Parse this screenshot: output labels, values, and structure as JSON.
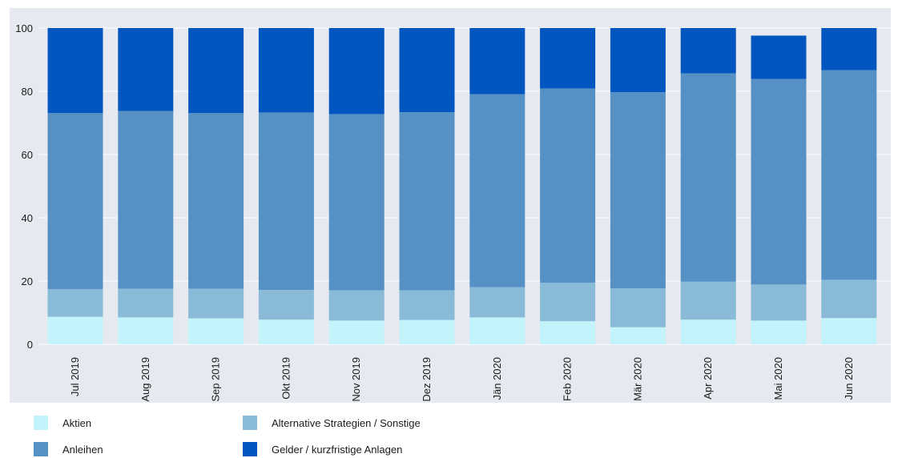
{
  "chart_data": {
    "type": "bar",
    "stacked": true,
    "title": "",
    "xlabel": "",
    "ylabel": "",
    "ylim": [
      0,
      100
    ],
    "yticks": [
      0,
      20,
      40,
      60,
      80,
      100
    ],
    "grid": true,
    "legend_position": "bottom",
    "categories": [
      "Jul 2019",
      "Aug 2019",
      "Sep 2019",
      "Okt 2019",
      "Nov 2019",
      "Dez 2019",
      "Jän 2020",
      "Feb 2020",
      "Mär 2020",
      "Apr 2020",
      "Mai 2020",
      "Jun 2020"
    ],
    "series": [
      {
        "name": "Aktien",
        "color": "#c3f3fb",
        "values": [
          8.7,
          8.5,
          8.2,
          7.8,
          7.5,
          7.7,
          8.5,
          7.3,
          5.4,
          7.8,
          7.5,
          8.3
        ]
      },
      {
        "name": "Alternative Strategien / Sonstige",
        "color": "#89bad8",
        "values": [
          8.7,
          9.1,
          9.4,
          9.4,
          9.6,
          9.4,
          9.6,
          12.2,
          12.3,
          12.0,
          11.4,
          12.1
        ]
      },
      {
        "name": "Anleihen",
        "color": "#5591c5",
        "values": [
          55.7,
          56.2,
          55.5,
          56.1,
          55.7,
          56.3,
          61.0,
          61.4,
          62.0,
          65.9,
          65.0,
          66.3
        ]
      },
      {
        "name": "Gelder / kurzfristige Anlagen",
        "color": "#0256bf",
        "values": [
          26.9,
          26.2,
          26.9,
          26.7,
          27.2,
          26.6,
          20.9,
          19.1,
          20.3,
          14.3,
          13.7,
          13.3
        ]
      }
    ]
  },
  "legend": {
    "items": [
      {
        "label": "Aktien",
        "color": "#c3f3fb"
      },
      {
        "label": "Alternative Strategien / Sonstige",
        "color": "#89bad8"
      },
      {
        "label": "Anleihen",
        "color": "#5591c5"
      },
      {
        "label": "Gelder / kurzfristige Anlagen",
        "color": "#0256bf"
      }
    ]
  }
}
